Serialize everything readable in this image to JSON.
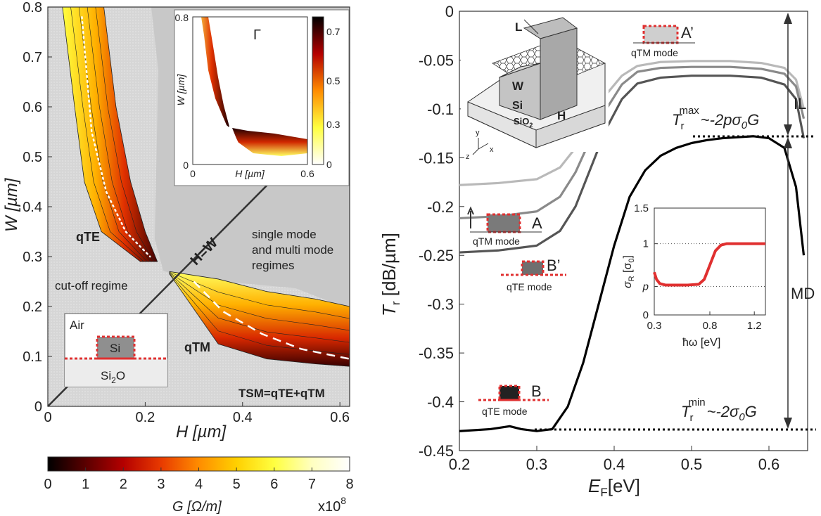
{
  "colors": {
    "hatch_bg": "#d0d0d0",
    "shade": "#c8c8c8",
    "line_black": "#000000",
    "line_dark": "#555555",
    "line_mid": "#8a8a8a",
    "line_light": "#b9b9b9",
    "red": "#e03030",
    "colormap": [
      "#000000",
      "#5a0000",
      "#b40000",
      "#e83a00",
      "#ff8c00",
      "#ffd000",
      "#ffff40",
      "#ffffc0",
      "#ffffff"
    ]
  },
  "chart_data": [
    {
      "type": "heatmap",
      "panel": "left",
      "xlabel": "H [µm]",
      "ylabel": "W [µm]",
      "xlim": [
        0,
        0.62
      ],
      "ylim": [
        0,
        0.8
      ],
      "x_ticks": [
        "0",
        "0.2",
        "0.4",
        "0.6"
      ],
      "y_ticks": [
        "0",
        "0.1",
        "0.2",
        "0.3",
        "0.4",
        "0.5",
        "0.6",
        "0.7",
        "0.8"
      ],
      "diagonal_label": "H=W",
      "annotations": {
        "qte": "qTE",
        "qtm": "qTM",
        "cutoff": "cut-off regime",
        "regimes_1": "single mode",
        "regimes_2": "and multi mode",
        "regimes_3": "regimes",
        "tsm": "TSM=qTE+qTM"
      },
      "schematic": {
        "air": "Air",
        "si": "Si",
        "substrate": "Si",
        "substrate_sub": "2",
        "substrate_end": "O"
      },
      "qte_band_edges_H": [
        {
          "W": 0.8,
          "inner": 0.03,
          "outer": 0.115
        },
        {
          "W": 0.6,
          "inner": 0.055,
          "outer": 0.14
        },
        {
          "W": 0.45,
          "inner": 0.075,
          "outer": 0.17
        },
        {
          "W": 0.35,
          "inner": 0.11,
          "outer": 0.2
        },
        {
          "W": 0.29,
          "inner": 0.19,
          "outer": 0.225
        }
      ],
      "qtm_band_edges_W": [
        {
          "H": 0.25,
          "inner": 0.265,
          "outer": 0.27
        },
        {
          "H": 0.35,
          "inner": 0.125,
          "outer": 0.255
        },
        {
          "H": 0.45,
          "inner": 0.095,
          "outer": 0.23
        },
        {
          "H": 0.55,
          "inner": 0.085,
          "outer": 0.215
        },
        {
          "H": 0.62,
          "inner": 0.08,
          "outer": 0.2
        }
      ],
      "qte_ridge": [
        [
          0.07,
          0.78
        ],
        [
          0.09,
          0.55
        ],
        [
          0.12,
          0.43
        ],
        [
          0.16,
          0.35
        ],
        [
          0.21,
          0.3
        ]
      ],
      "qtm_ridge": [
        [
          0.3,
          0.25
        ],
        [
          0.36,
          0.19
        ],
        [
          0.44,
          0.145
        ],
        [
          0.52,
          0.115
        ],
        [
          0.62,
          0.095
        ]
      ]
    },
    {
      "type": "heatmap",
      "panel": "left-inset",
      "title": "Γ",
      "xlabel": "H [µm]",
      "ylabel": "W [µm]",
      "xlim": [
        0,
        0.6
      ],
      "ylim": [
        0,
        0.8
      ],
      "x_ticks": [
        "0",
        "0.6"
      ],
      "y_ticks": [
        "0",
        "0.8"
      ],
      "colorbar_ticks": [
        "0",
        "0.3",
        "0.5",
        "0.7"
      ],
      "colorbar_range": [
        0,
        0.75
      ]
    },
    {
      "type": "colorbar",
      "panel": "bottom",
      "label": "G [Ω/m]",
      "multiplier": "x10",
      "multiplier_exp": "8",
      "range": [
        0,
        8
      ],
      "ticks": [
        "0",
        "1",
        "2",
        "3",
        "4",
        "5",
        "6",
        "7",
        "8"
      ]
    },
    {
      "type": "line",
      "panel": "right",
      "xlabel": "E",
      "xlabel_sub": "F",
      "xlabel_unit": "[eV]",
      "ylabel": "T",
      "ylabel_sub": "r",
      "ylabel_unit": " [dB/µm]",
      "xlim": [
        0.2,
        0.65
      ],
      "ylim": [
        -0.45,
        0
      ],
      "x_ticks": [
        "0.2",
        "0.3",
        "0.4",
        "0.5",
        "0.6"
      ],
      "y_ticks": [
        "0",
        "-0.05",
        "-0.1",
        "-0.15",
        "-0.2",
        "-0.25",
        "-0.3",
        "-0.35",
        "-0.4",
        "-0.45"
      ],
      "series": [
        {
          "key": "black",
          "points": [
            [
              0.2,
              -0.43
            ],
            [
              0.24,
              -0.428
            ],
            [
              0.265,
              -0.425
            ],
            [
              0.28,
              -0.428
            ],
            [
              0.3,
              -0.43
            ],
            [
              0.32,
              -0.428
            ],
            [
              0.34,
              -0.405
            ],
            [
              0.36,
              -0.36
            ],
            [
              0.38,
              -0.3
            ],
            [
              0.4,
              -0.24
            ],
            [
              0.42,
              -0.19
            ],
            [
              0.44,
              -0.163
            ],
            [
              0.46,
              -0.148
            ],
            [
              0.48,
              -0.14
            ],
            [
              0.5,
              -0.135
            ],
            [
              0.52,
              -0.132
            ],
            [
              0.54,
              -0.13
            ],
            [
              0.56,
              -0.129
            ],
            [
              0.58,
              -0.128
            ],
            [
              0.6,
              -0.13
            ],
            [
              0.62,
              -0.14
            ],
            [
              0.635,
              -0.18
            ],
            [
              0.645,
              -0.25
            ]
          ]
        },
        {
          "key": "dark",
          "points": [
            [
              0.2,
              -0.247
            ],
            [
              0.25,
              -0.245
            ],
            [
              0.3,
              -0.24
            ],
            [
              0.33,
              -0.225
            ],
            [
              0.35,
              -0.2
            ],
            [
              0.37,
              -0.16
            ],
            [
              0.39,
              -0.12
            ],
            [
              0.41,
              -0.09
            ],
            [
              0.43,
              -0.074
            ],
            [
              0.46,
              -0.068
            ],
            [
              0.5,
              -0.066
            ],
            [
              0.55,
              -0.066
            ],
            [
              0.59,
              -0.068
            ],
            [
              0.62,
              -0.075
            ],
            [
              0.635,
              -0.09
            ],
            [
              0.645,
              -0.13
            ]
          ]
        },
        {
          "key": "mid",
          "points": [
            [
              0.2,
              -0.212
            ],
            [
              0.25,
              -0.21
            ],
            [
              0.3,
              -0.205
            ],
            [
              0.33,
              -0.19
            ],
            [
              0.35,
              -0.165
            ],
            [
              0.37,
              -0.13
            ],
            [
              0.39,
              -0.1
            ],
            [
              0.41,
              -0.075
            ],
            [
              0.43,
              -0.062
            ],
            [
              0.46,
              -0.058
            ],
            [
              0.5,
              -0.057
            ],
            [
              0.55,
              -0.057
            ],
            [
              0.59,
              -0.059
            ],
            [
              0.62,
              -0.064
            ],
            [
              0.635,
              -0.077
            ],
            [
              0.645,
              -0.11
            ]
          ]
        },
        {
          "key": "light",
          "points": [
            [
              0.2,
              -0.178
            ],
            [
              0.25,
              -0.176
            ],
            [
              0.3,
              -0.172
            ],
            [
              0.33,
              -0.16
            ],
            [
              0.35,
              -0.14
            ],
            [
              0.37,
              -0.11
            ],
            [
              0.39,
              -0.085
            ],
            [
              0.41,
              -0.066
            ],
            [
              0.43,
              -0.056
            ],
            [
              0.46,
              -0.052
            ],
            [
              0.5,
              -0.051
            ],
            [
              0.55,
              -0.051
            ],
            [
              0.59,
              -0.053
            ],
            [
              0.62,
              -0.058
            ],
            [
              0.635,
              -0.07
            ],
            [
              0.645,
              -0.1
            ]
          ]
        }
      ],
      "max_level": -0.128,
      "min_level": -0.43,
      "annotations": {
        "t_max": "T",
        "t_max_sub": "r",
        "t_max_sup": "max",
        "t_max_rhs": "~-2pσ",
        "t_max_rhs_sub": "0",
        "t_max_rhs_end": "G",
        "t_min": "T",
        "t_min_sub": "r",
        "t_min_sup": "min",
        "t_min_rhs": "~-2σ",
        "t_min_rhs_sub": "0",
        "t_min_rhs_end": "G",
        "il": "IL",
        "md": "MD",
        "mode_a": "A",
        "mode_a_desc": "qTM mode",
        "mode_a2": "A’",
        "mode_a2_desc": "qTM mode",
        "mode_b": "B",
        "mode_b_desc": "qTE mode",
        "mode_b2": "B’",
        "mode_b2_desc": "qTE mode"
      },
      "device_labels": {
        "l": "L",
        "w": "W",
        "h": "H",
        "si": "Si",
        "sio2": "SiO",
        "sio2_sub": "2",
        "ax_x": "x",
        "ax_y": "y",
        "ax_z": "z"
      }
    },
    {
      "type": "line",
      "panel": "right-inset",
      "xlabel": "ħω [eV]",
      "ylabel": "σ",
      "ylabel_sub": "R",
      "ylabel_unit": " [σ",
      "ylabel_unit_sub": "0",
      "ylabel_unit_end": "]",
      "xlim": [
        0.3,
        1.3
      ],
      "ylim": [
        0,
        1.5
      ],
      "x_ticks": [
        "0.3",
        "0.8",
        "1.2"
      ],
      "y_ticks": [
        "0",
        "p",
        "1",
        "1.5"
      ],
      "p_level": 0.4,
      "series": [
        {
          "name": "",
          "points": [
            [
              0.3,
              0.6
            ],
            [
              0.32,
              0.5
            ],
            [
              0.35,
              0.44
            ],
            [
              0.4,
              0.42
            ],
            [
              0.5,
              0.42
            ],
            [
              0.6,
              0.42
            ],
            [
              0.7,
              0.43
            ],
            [
              0.75,
              0.5
            ],
            [
              0.8,
              0.7
            ],
            [
              0.85,
              0.9
            ],
            [
              0.9,
              0.98
            ],
            [
              0.95,
              1.0
            ],
            [
              1.0,
              1.0
            ],
            [
              1.1,
              1.0
            ],
            [
              1.3,
              1.0
            ]
          ]
        }
      ]
    }
  ]
}
